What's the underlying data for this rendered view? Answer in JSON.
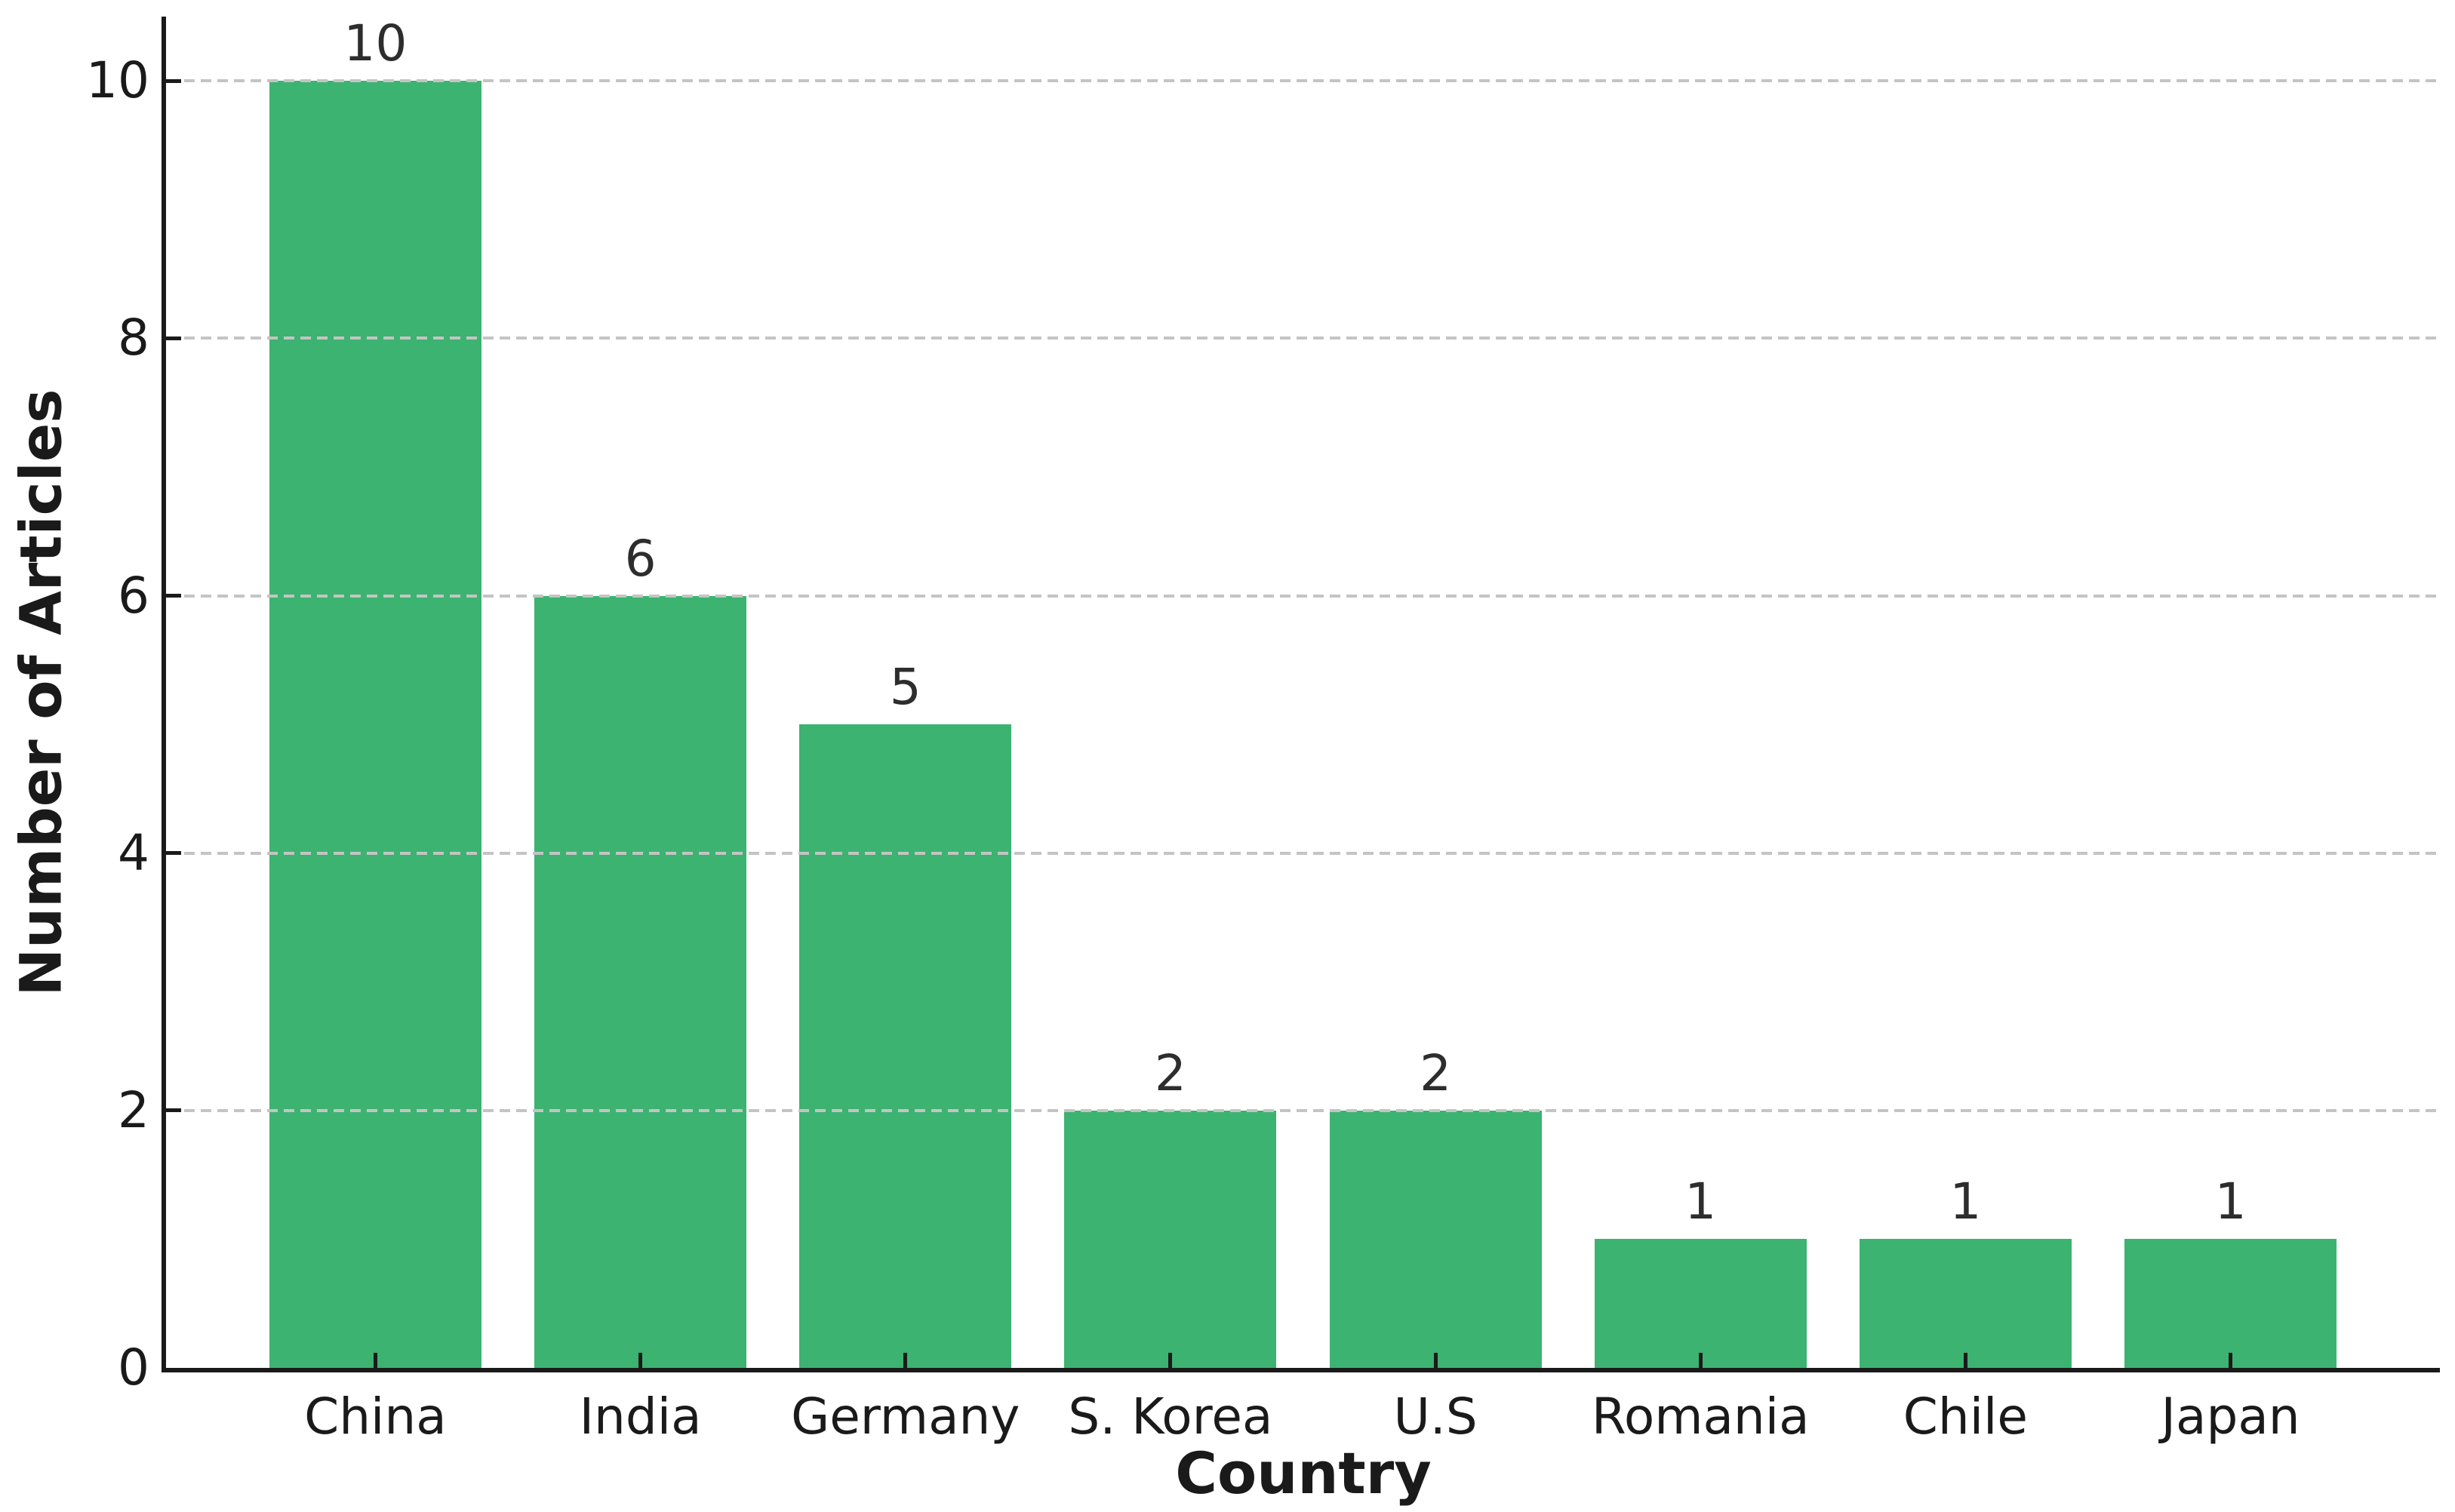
{
  "chart_data": {
    "type": "bar",
    "categories": [
      "China",
      "India",
      "Germany",
      "S. Korea",
      "U.S",
      "Romania",
      "Chile",
      "Japan"
    ],
    "values": [
      10,
      6,
      5,
      2,
      2,
      1,
      1,
      1
    ],
    "bar_labels": [
      "10",
      "6",
      "5",
      "2",
      "2",
      "1",
      "1",
      "1"
    ],
    "title": "",
    "xlabel": "Country",
    "ylabel": "Number of Articles",
    "yticks": [
      0,
      2,
      4,
      6,
      8,
      10
    ],
    "ytick_labels": [
      "0",
      "2",
      "4",
      "6",
      "8",
      "10"
    ],
    "ylim": [
      0,
      10.5
    ],
    "grid": "horizontal-dashed",
    "gridlines_above_bars": true,
    "legend": "none",
    "colors": {
      "bar": "#3cb371",
      "gridline": "#c4c4c4",
      "spine": "#1a1a1a",
      "tick_label": "#1a1a1a",
      "axis_label": "#1a1a1a",
      "value_label": "#2d2d2d",
      "background": "#ffffff"
    }
  }
}
